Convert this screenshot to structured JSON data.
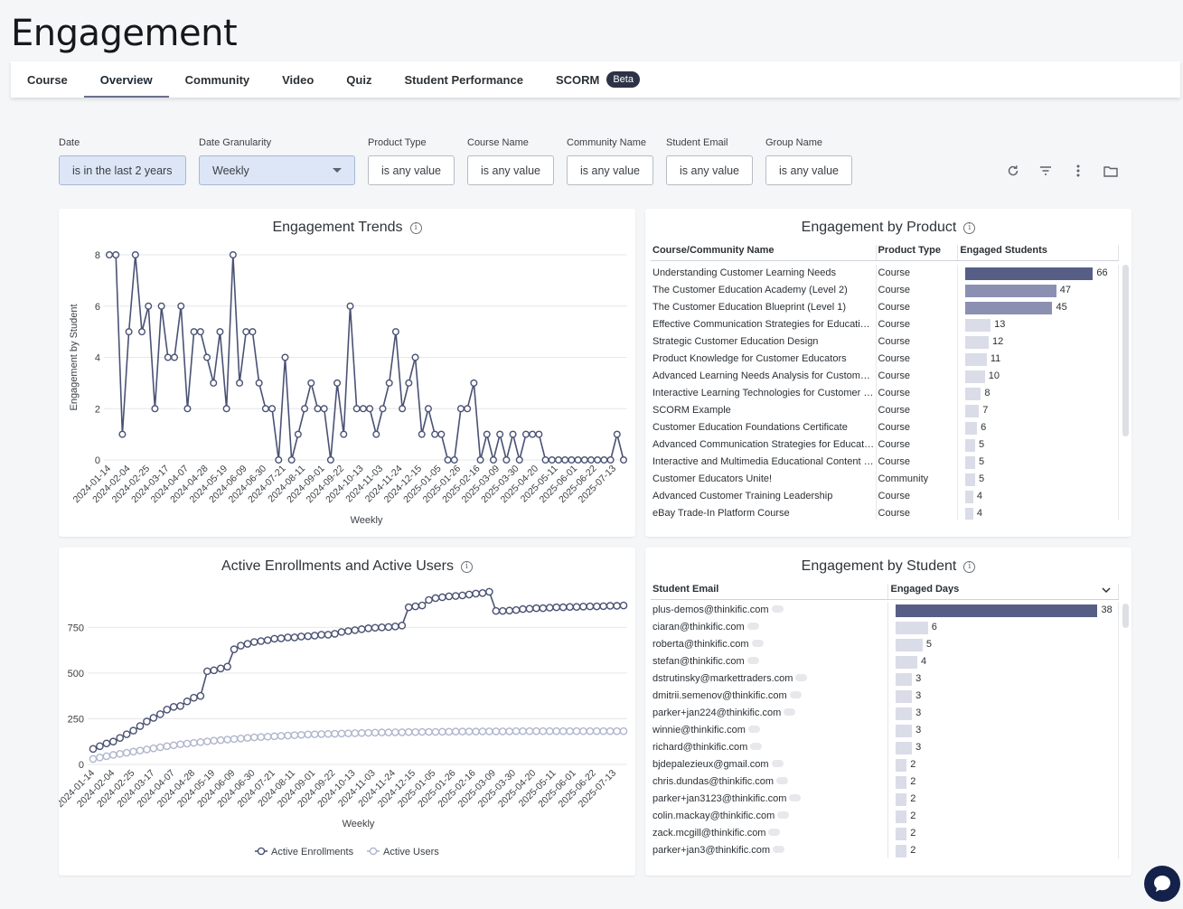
{
  "page": {
    "title": "Engagement"
  },
  "tabs": [
    {
      "label": "Course"
    },
    {
      "label": "Overview"
    },
    {
      "label": "Community"
    },
    {
      "label": "Video"
    },
    {
      "label": "Quiz"
    },
    {
      "label": "Student Performance"
    },
    {
      "label": "SCORM",
      "badge": "Beta"
    }
  ],
  "filters": {
    "date": {
      "label": "Date",
      "value": "is in the last 2 years"
    },
    "granularity": {
      "label": "Date Granularity",
      "value": "Weekly"
    },
    "product_type": {
      "label": "Product Type",
      "value": "is any value"
    },
    "course_name": {
      "label": "Course Name",
      "value": "is any value"
    },
    "community_name": {
      "label": "Community Name",
      "value": "is any value"
    },
    "student_email": {
      "label": "Student Email",
      "value": "is any value"
    },
    "group_name": {
      "label": "Group Name",
      "value": "is any value"
    }
  },
  "toolbar": {
    "icons": [
      "refresh-icon",
      "filter-icon",
      "more-vertical-icon",
      "folder-icon"
    ]
  },
  "trends": {
    "title": "Engagement Trends",
    "chart_data": {
      "type": "line",
      "xlabel": "Weekly",
      "ylabel": "Engagement by Student",
      "ylim": [
        0,
        8
      ],
      "yticks": [
        0,
        2,
        4,
        6,
        8
      ],
      "xtick_labels": [
        "2024-01-14",
        "2024-02-04",
        "2024-02-25",
        "2024-03-17",
        "2024-04-07",
        "2024-04-28",
        "2024-05-19",
        "2024-06-09",
        "2024-06-30",
        "2024-07-21",
        "2024-08-11",
        "2024-09-01",
        "2024-09-22",
        "2024-10-13",
        "2024-11-03",
        "2024-11-24",
        "2024-12-15",
        "2025-01-05",
        "2025-01-26",
        "2025-02-16",
        "2025-03-09",
        "2025-03-30",
        "2025-04-20",
        "2025-05-11",
        "2025-06-01",
        "2025-06-22",
        "2025-07-13"
      ],
      "values": [
        8,
        8,
        1,
        5,
        8,
        5,
        6,
        2,
        6,
        4,
        4,
        6,
        2,
        5,
        5,
        4,
        3,
        5,
        2,
        8,
        3,
        5,
        5,
        3,
        2,
        2,
        0,
        4,
        0,
        1,
        2,
        3,
        2,
        2,
        0,
        3,
        1,
        6,
        2,
        2,
        2,
        1,
        2,
        3,
        5,
        2,
        3,
        4,
        1,
        2,
        1,
        1,
        0,
        0,
        2,
        2,
        3,
        0,
        1,
        0,
        1,
        0,
        1,
        0,
        1,
        1,
        1,
        0,
        0,
        0,
        0,
        0,
        0,
        0,
        0,
        0,
        0,
        0,
        1,
        0
      ]
    }
  },
  "enrollments": {
    "title": "Active Enrollments and Active Users",
    "chart_data": {
      "type": "line",
      "xlabel": "Weekly",
      "ylim": [
        0,
        900
      ],
      "yticks": [
        0,
        250,
        500,
        750
      ],
      "xtick_labels": [
        "2024-01-14",
        "2024-02-04",
        "2024-02-25",
        "2024-03-17",
        "2024-04-07",
        "2024-04-28",
        "2024-05-19",
        "2024-06-09",
        "2024-06-30",
        "2024-07-21",
        "2024-08-11",
        "2024-09-01",
        "2024-09-22",
        "2024-10-13",
        "2024-11-03",
        "2024-11-24",
        "2024-12-15",
        "2025-01-05",
        "2025-01-26",
        "2025-02-16",
        "2025-03-09",
        "2025-03-30",
        "2025-04-20",
        "2025-05-11",
        "2025-06-01",
        "2025-06-22",
        "2025-07-13"
      ],
      "series": [
        {
          "name": "Active Enrollments",
          "color": "#4a5274",
          "values": [
            85,
            100,
            115,
            125,
            145,
            165,
            185,
            210,
            235,
            255,
            275,
            300,
            315,
            320,
            345,
            365,
            375,
            510,
            515,
            525,
            535,
            630,
            650,
            660,
            670,
            675,
            680,
            688,
            690,
            695,
            695,
            700,
            702,
            705,
            710,
            710,
            715,
            725,
            730,
            735,
            740,
            745,
            748,
            750,
            752,
            755,
            760,
            860,
            865,
            870,
            900,
            910,
            915,
            920,
            922,
            925,
            930,
            935,
            938,
            945,
            840,
            840,
            842,
            845,
            850,
            852,
            855,
            855,
            858,
            860,
            860,
            862,
            862,
            864,
            865,
            865,
            866,
            868,
            868,
            870
          ]
        },
        {
          "name": "Active Users",
          "color": "#b0b6cc",
          "values": [
            30,
            38,
            45,
            52,
            58,
            64,
            70,
            76,
            82,
            88,
            94,
            100,
            105,
            110,
            114,
            118,
            122,
            126,
            130,
            133,
            136,
            139,
            142,
            145,
            148,
            150,
            152,
            154,
            156,
            158,
            160,
            162,
            164,
            165,
            166,
            167,
            168,
            169,
            170,
            171,
            172,
            173,
            174,
            175,
            175,
            176,
            176,
            177,
            177,
            178,
            178,
            178,
            179,
            179,
            180,
            180,
            180,
            180,
            181,
            181,
            181,
            181,
            181,
            182,
            182,
            182,
            182,
            182,
            182,
            182,
            182,
            182,
            182,
            182,
            182,
            182,
            182,
            182,
            182,
            182
          ]
        }
      ],
      "legend_position": "bottom"
    }
  },
  "by_product": {
    "title": "Engagement by Product",
    "columns": [
      "Course/Community Name",
      "Product Type",
      "Engaged Students"
    ],
    "rows": [
      {
        "name": "Understanding Customer Learning Needs",
        "type": "Course",
        "value": 66
      },
      {
        "name": "The Customer Education Academy (Level 2)",
        "type": "Course",
        "value": 47
      },
      {
        "name": "The Customer Education Blueprint (Level 1)",
        "type": "Course",
        "value": 45
      },
      {
        "name": "Effective Communication Strategies for Educati…",
        "type": "Course",
        "value": 13
      },
      {
        "name": "Strategic Customer Education Design",
        "type": "Course",
        "value": 12
      },
      {
        "name": "Product Knowledge for Customer Educators",
        "type": "Course",
        "value": 11
      },
      {
        "name": "Advanced Learning Needs Analysis for Custome…",
        "type": "Course",
        "value": 10
      },
      {
        "name": "Interactive Learning Technologies for Customer …",
        "type": "Course",
        "value": 8
      },
      {
        "name": "SCORM Example",
        "type": "Course",
        "value": 7
      },
      {
        "name": "Customer Education Foundations Certificate",
        "type": "Course",
        "value": 6
      },
      {
        "name": "Advanced Communication Strategies for Educat…",
        "type": "Course",
        "value": 5
      },
      {
        "name": "Interactive and Multimedia Educational Content …",
        "type": "Course",
        "value": 5
      },
      {
        "name": "Customer Educators Unite!",
        "type": "Community",
        "value": 5
      },
      {
        "name": "Advanced Customer Training Leadership",
        "type": "Course",
        "value": 4
      },
      {
        "name": "eBay Trade-In Platform Course",
        "type": "Course",
        "value": 4
      }
    ]
  },
  "by_student": {
    "title": "Engagement by Student",
    "columns": [
      "Student Email",
      "Engaged Days"
    ],
    "rows": [
      {
        "email": "plus-demos@thinkific.com",
        "value": 38
      },
      {
        "email": "ciaran@thinkific.com",
        "value": 6
      },
      {
        "email": "roberta@thinkific.com",
        "value": 5
      },
      {
        "email": "stefan@thinkific.com",
        "value": 4
      },
      {
        "email": "dstrutinsky@markettraders.com",
        "value": 3
      },
      {
        "email": "dmitrii.semenov@thinkific.com",
        "value": 3
      },
      {
        "email": "parker+jan224@thinkific.com",
        "value": 3
      },
      {
        "email": "winnie@thinkific.com",
        "value": 3
      },
      {
        "email": "richard@thinkific.com",
        "value": 3
      },
      {
        "email": "bjdepalezieux@gmail.com",
        "value": 2
      },
      {
        "email": "chris.dundas@thinkific.com",
        "value": 2
      },
      {
        "email": "parker+jan3123@thinkific.com",
        "value": 2
      },
      {
        "email": "colin.mackay@thinkific.com",
        "value": 2
      },
      {
        "email": "zack.mcgill@thinkific.com",
        "value": 2
      },
      {
        "email": "parker+jan3@thinkific.com",
        "value": 2
      }
    ]
  }
}
